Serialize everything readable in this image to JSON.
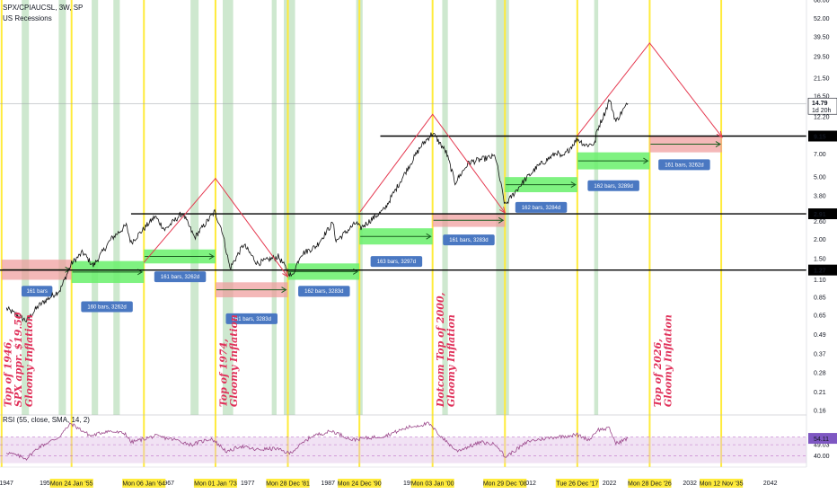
{
  "header": {
    "symbol": "SPX/CPIAUCSL, 3W, SP",
    "indicator": "US Recessions"
  },
  "rsi": {
    "label": "RSI (55, close, SMA, 14, 2)",
    "last_value": "54.11",
    "ticks": [
      "55.13",
      "49.03",
      "40.00"
    ]
  },
  "chart_data": [
    {
      "type": "line",
      "yscale": "log",
      "ylim": [
        0.15,
        68
      ],
      "xlim": [
        1946.2,
        2046.5
      ],
      "y_ticks": [
        0.16,
        0.21,
        0.28,
        0.37,
        0.49,
        0.65,
        0.85,
        1.1,
        1.5,
        2.0,
        2.6,
        3.8,
        5.0,
        7.0,
        9.15,
        12.2,
        16.5,
        21.5,
        29.5,
        39.5,
        52.0,
        68.0
      ],
      "y_tick_labels": [
        "0.16",
        "0.21",
        "0.28",
        "0.37",
        "0.49",
        "0.65",
        "0.85",
        "1.10",
        "1.50",
        "2.00",
        "2.60",
        "3.80",
        "5.00",
        "7.00",
        "9.15",
        "12.20",
        "16.50",
        "21.50",
        "29.50",
        "39.50",
        "52.00",
        "68.00"
      ],
      "x_year_ticks": [
        {
          "x": 1947,
          "label": "1947"
        },
        {
          "x": 1952,
          "label": "1952"
        },
        {
          "x": 1957,
          "label": "7"
        },
        {
          "x": 1962,
          "label": "2"
        },
        {
          "x": 1967,
          "label": "1967"
        },
        {
          "x": 1977,
          "label": "1977"
        },
        {
          "x": 1987,
          "label": "1987"
        },
        {
          "x": 1997,
          "label": "199"
        },
        {
          "x": 2002,
          "label": "2"
        },
        {
          "x": 2012,
          "label": "2012"
        },
        {
          "x": 2022,
          "label": "2022"
        },
        {
          "x": 2032,
          "label": "2032"
        },
        {
          "x": 2042,
          "label": "2042"
        }
      ],
      "x_date_labels": [
        {
          "x": 1955.1,
          "label": "Mon 24 Jan '55"
        },
        {
          "x": 1964.1,
          "label": "Mon 06 Jan '64"
        },
        {
          "x": 1973.0,
          "label": "Mon 01 Jan '73"
        },
        {
          "x": 1982.0,
          "label": "Mon 28 Dec '81"
        },
        {
          "x": 1990.9,
          "label": "Mon 24 Dec '90"
        },
        {
          "x": 2000.0,
          "label": "Mon 03 Jan '00"
        },
        {
          "x": 2009.0,
          "label": "Mon 29 Dec '08"
        },
        {
          "x": 2018.0,
          "label": "Tue 26 Dec '17"
        },
        {
          "x": 2027.0,
          "label": "Mon 28 Dec '26"
        },
        {
          "x": 2035.9,
          "label": "Mon 12 Nov '35"
        }
      ],
      "price_labels": [
        {
          "y": 14.79,
          "label": "14.79",
          "sub": "1d 20h",
          "style": "last"
        },
        {
          "y": 9.15,
          "label": "9.15",
          "style": "level"
        },
        {
          "y": 2.91,
          "label": "2.91",
          "style": "level"
        },
        {
          "y": 1.27,
          "label": "1.27",
          "style": "level"
        }
      ],
      "horizontal_levels": [
        {
          "y": 9.15,
          "x_from": 1993.5,
          "x_to": 2046.5
        },
        {
          "y": 2.91,
          "x_from": 1962.5,
          "x_to": 2046.5
        },
        {
          "y": 1.27,
          "x_from": 1946.2,
          "x_to": 2046.5
        },
        {
          "y": 14.79,
          "x_from": 1946.2,
          "x_to": 2046.5,
          "thin": true
        }
      ],
      "vertical_markers": [
        1946.4,
        1955.1,
        1964.1,
        1973.0,
        1982.0,
        1990.9,
        2000.0,
        2009.0,
        2018.0,
        2027.0,
        2035.9
      ],
      "recessions": [
        [
          1948.9,
          1949.8
        ],
        [
          1953.5,
          1954.4
        ],
        [
          1957.6,
          1958.4
        ],
        [
          1960.3,
          1961.1
        ],
        [
          1969.9,
          1970.9
        ],
        [
          1973.9,
          1975.2
        ],
        [
          1980.0,
          1980.6
        ],
        [
          1981.5,
          1982.9
        ],
        [
          1990.5,
          1991.3
        ],
        [
          2001.2,
          2001.9
        ],
        [
          2007.9,
          2009.5
        ],
        [
          2020.1,
          2020.6
        ]
      ],
      "ranges": [
        {
          "x0": 1946.4,
          "x1": 1955.1,
          "y_low": 1.1,
          "y_high": 1.48,
          "color": "red",
          "label": "161 bars",
          "lx": 1950.8,
          "ly": 0.93
        },
        {
          "x0": 1955.1,
          "x1": 1964.1,
          "y_low": 1.05,
          "y_high": 1.45,
          "color": "green",
          "label": "160 bars, 3262d",
          "lx": 1959.5,
          "ly": 0.74
        },
        {
          "x0": 1964.1,
          "x1": 1973.0,
          "y_low": 1.4,
          "y_high": 1.72,
          "color": "green",
          "label": "161 bars, 3262d",
          "lx": 1968.6,
          "ly": 1.15
        },
        {
          "x0": 1973.0,
          "x1": 1982.0,
          "y_low": 0.85,
          "y_high": 1.06,
          "color": "red",
          "label": "161 bars, 3283d",
          "lx": 1977.5,
          "ly": 0.62
        },
        {
          "x0": 1982.0,
          "x1": 1990.9,
          "y_low": 1.1,
          "y_high": 1.4,
          "color": "green",
          "label": "162 bars, 3283d",
          "lx": 1986.5,
          "ly": 0.93
        },
        {
          "x0": 1990.9,
          "x1": 2000.0,
          "y_low": 1.85,
          "y_high": 2.35,
          "color": "green",
          "label": "163 bars, 3297d",
          "lx": 1995.5,
          "ly": 1.44
        },
        {
          "x0": 2000.0,
          "x1": 2009.0,
          "y_low": 2.4,
          "y_high": 2.91,
          "color": "red",
          "label": "161 bars, 3283d",
          "lx": 2004.5,
          "ly": 1.98
        },
        {
          "x0": 2009.0,
          "x1": 2018.0,
          "y_low": 4.0,
          "y_high": 5.0,
          "color": "green",
          "label": "162 bars, 3284d",
          "lx": 2013.5,
          "ly": 3.2
        },
        {
          "x0": 2018.0,
          "x1": 2027.0,
          "y_low": 5.6,
          "y_high": 7.2,
          "color": "green",
          "label": "162 bars, 3289d",
          "lx": 2022.5,
          "ly": 4.4
        },
        {
          "x0": 2027.0,
          "x1": 2036.0,
          "y_low": 7.2,
          "y_high": 9.15,
          "color": "red",
          "label": "161 bars, 3262d",
          "lx": 2031.3,
          "ly": 6.0
        }
      ],
      "annotations": [
        {
          "x": 1947.6,
          "y": 0.16,
          "text": "Top of 1946,"
        },
        {
          "x": 1948.9,
          "y": 0.16,
          "text": "SPX appr. $19.50"
        },
        {
          "x": 1950.2,
          "y": 0.16,
          "text": "Gloomy Inflation"
        },
        {
          "x": 1974.4,
          "y": 0.16,
          "text": "Top of 1974,"
        },
        {
          "x": 1975.7,
          "y": 0.16,
          "text": "Gloomy Inflation"
        },
        {
          "x": 2001.4,
          "y": 0.16,
          "text": "Dotcom Top of 2000,"
        },
        {
          "x": 2002.7,
          "y": 0.16,
          "text": "Gloomy Inflation"
        },
        {
          "x": 2028.4,
          "y": 0.16,
          "text": "Top of 2026,"
        },
        {
          "x": 2029.7,
          "y": 0.16,
          "text": "Gloomy Inflation"
        }
      ],
      "red_paths": [
        [
          [
            1964.1,
            1.42
          ],
          [
            1973.0,
            4.9
          ],
          [
            1982.0,
            1.15
          ]
        ],
        [
          [
            1991.0,
            3.0
          ],
          [
            2000.0,
            12.6
          ],
          [
            2009.0,
            2.95
          ]
        ],
        [
          [
            2018.0,
            9.2
          ],
          [
            2027.0,
            36.0
          ],
          [
            2036.0,
            9.0
          ]
        ]
      ],
      "price_anchors": [
        [
          1947.0,
          0.72
        ],
        [
          1949.5,
          0.6
        ],
        [
          1951.0,
          0.75
        ],
        [
          1953.7,
          0.95
        ],
        [
          1955.1,
          1.4
        ],
        [
          1956.5,
          1.65
        ],
        [
          1957.8,
          1.35
        ],
        [
          1960.0,
          2.0
        ],
        [
          1961.9,
          2.45
        ],
        [
          1962.5,
          1.9
        ],
        [
          1965.5,
          2.8
        ],
        [
          1966.7,
          2.3
        ],
        [
          1968.9,
          2.95
        ],
        [
          1970.4,
          2.05
        ],
        [
          1972.9,
          3.0
        ],
        [
          1973.8,
          2.3
        ],
        [
          1974.8,
          1.3
        ],
        [
          1976.5,
          1.85
        ],
        [
          1978.2,
          1.4
        ],
        [
          1980.8,
          1.55
        ],
        [
          1982.5,
          1.15
        ],
        [
          1983.6,
          1.6
        ],
        [
          1985.5,
          1.8
        ],
        [
          1987.6,
          2.55
        ],
        [
          1988.0,
          1.95
        ],
        [
          1990.5,
          2.55
        ],
        [
          1991.0,
          2.35
        ],
        [
          1994.0,
          3.1
        ],
        [
          1997.0,
          5.8
        ],
        [
          1998.5,
          7.8
        ],
        [
          2000.0,
          9.6
        ],
        [
          2001.7,
          7.2
        ],
        [
          2002.8,
          4.6
        ],
        [
          2004.5,
          6.2
        ],
        [
          2007.8,
          6.8
        ],
        [
          2009.0,
          3.3
        ],
        [
          2011.0,
          4.5
        ],
        [
          2013.0,
          5.8
        ],
        [
          2015.5,
          7.2
        ],
        [
          2016.1,
          6.6
        ],
        [
          2018.0,
          8.8
        ],
        [
          2019.0,
          8.0
        ],
        [
          2020.2,
          8.2
        ],
        [
          2020.4,
          9.8
        ],
        [
          2021.5,
          13.2
        ],
        [
          2022.0,
          15.8
        ],
        [
          2022.8,
          11.3
        ],
        [
          2023.5,
          13.0
        ],
        [
          2024.3,
          14.79
        ]
      ],
      "rsi_data": {
        "ylim": [
          34,
          70
        ],
        "series": [
          [
            1947.0,
            43
          ],
          [
            1949.5,
            38
          ],
          [
            1951.0,
            47
          ],
          [
            1953.5,
            55
          ],
          [
            1955.0,
            66
          ],
          [
            1957.5,
            56
          ],
          [
            1959.5,
            60
          ],
          [
            1961.8,
            58
          ],
          [
            1962.5,
            51
          ],
          [
            1965.5,
            56
          ],
          [
            1968.0,
            53
          ],
          [
            1970.0,
            49
          ],
          [
            1972.5,
            54
          ],
          [
            1974.5,
            43
          ],
          [
            1976.0,
            48
          ],
          [
            1978.0,
            45
          ],
          [
            1980.5,
            46
          ],
          [
            1982.2,
            42
          ],
          [
            1985.0,
            56
          ],
          [
            1987.5,
            60
          ],
          [
            1990.0,
            53
          ],
          [
            1994.0,
            56
          ],
          [
            1997.0,
            63
          ],
          [
            1999.5,
            66
          ],
          [
            2001.0,
            56
          ],
          [
            2003.0,
            44
          ],
          [
            2006.0,
            51
          ],
          [
            2008.0,
            49
          ],
          [
            2009.0,
            39
          ],
          [
            2012.0,
            52
          ],
          [
            2015.0,
            55
          ],
          [
            2018.0,
            57
          ],
          [
            2019.5,
            53
          ],
          [
            2020.5,
            61
          ],
          [
            2022.0,
            62
          ],
          [
            2022.8,
            50
          ],
          [
            2024.3,
            54.11
          ]
        ]
      }
    }
  ]
}
